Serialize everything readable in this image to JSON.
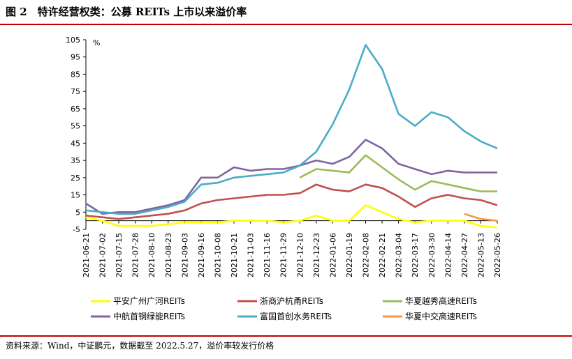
{
  "figure": {
    "title": "图 2　特许经营权类：公募 REITs 上市以来溢价率",
    "source": "资料来源：Wind，中证鹏元，数据截至 2022.5.27，溢价率较发行价格",
    "accent_color": "#c00000"
  },
  "chart_data": {
    "type": "line",
    "title": "特许经营权类：公募 REITs 上市以来溢价率",
    "ylabel": "%",
    "xlabel": "",
    "ylim": [
      -5,
      105
    ],
    "yticks": [
      -5,
      5,
      15,
      25,
      35,
      45,
      55,
      65,
      75,
      85,
      95,
      105
    ],
    "grid": false,
    "legend_position": "bottom",
    "x": [
      "2021-06-21",
      "2021-07-02",
      "2021-07-15",
      "2021-07-28",
      "2021-08-10",
      "2021-08-23",
      "2021-09-03",
      "2021-09-16",
      "2021-10-08",
      "2021-10-21",
      "2021-11-03",
      "2021-11-16",
      "2021-11-29",
      "2021-12-10",
      "2021-12-23",
      "2022-01-06",
      "2022-01-19",
      "2022-02-08",
      "2022-02-21",
      "2022-03-04",
      "2022-03-17",
      "2022-03-30",
      "2022-04-14",
      "2022-04-27",
      "2022-05-13",
      "2022-05-26"
    ],
    "series": [
      {
        "name": "平安广州广河REITs",
        "color": "#ffff00",
        "values": [
          2,
          0,
          -3,
          -3,
          -3,
          -2,
          -1,
          -1,
          -1,
          0,
          0,
          0,
          -1,
          0,
          3,
          0,
          0,
          9,
          5,
          1,
          -1,
          0,
          0,
          0,
          -3,
          -4
        ]
      },
      {
        "name": "浙商沪杭甬REITs",
        "color": "#c0504d",
        "values": [
          3,
          2,
          1,
          2,
          3,
          4,
          6,
          10,
          12,
          13,
          14,
          15,
          15,
          16,
          21,
          18,
          17,
          21,
          19,
          14,
          8,
          13,
          15,
          13,
          12,
          9
        ]
      },
      {
        "name": "华夏越秀高速REITs",
        "color": "#9bbb59",
        "values": [
          null,
          null,
          null,
          null,
          null,
          null,
          null,
          null,
          null,
          null,
          null,
          null,
          null,
          25,
          30,
          29,
          28,
          38,
          31,
          24,
          18,
          23,
          21,
          19,
          17,
          17
        ]
      },
      {
        "name": "中航首钢绿能REITs",
        "color": "#8064a2",
        "values": [
          10,
          4,
          5,
          5,
          7,
          9,
          12,
          25,
          25,
          31,
          29,
          30,
          30,
          32,
          35,
          33,
          37,
          47,
          42,
          33,
          30,
          27,
          29,
          28,
          28,
          28
        ]
      },
      {
        "name": "富国首创水务REITs",
        "color": "#4bacc6",
        "values": [
          6,
          5,
          4,
          4,
          6,
          8,
          11,
          21,
          22,
          25,
          26,
          27,
          28,
          32,
          40,
          56,
          76,
          102,
          88,
          62,
          55,
          63,
          60,
          52,
          46,
          42
        ]
      },
      {
        "name": "华夏中交高速REITs",
        "color": "#f79646",
        "values": [
          null,
          null,
          null,
          null,
          null,
          null,
          null,
          null,
          null,
          null,
          null,
          null,
          null,
          null,
          null,
          null,
          null,
          null,
          null,
          null,
          null,
          null,
          null,
          4,
          1,
          0
        ]
      }
    ]
  }
}
